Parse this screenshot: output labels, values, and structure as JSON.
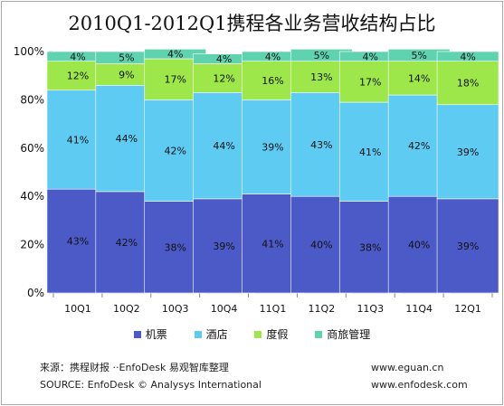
{
  "colors": {
    "airline": "#4c5ac8",
    "hotel": "#5ecbf3",
    "vacation": "#9de74a",
    "business": "#5fd3ae"
  },
  "footer": {
    "source_cn": "来源：携程财报 ··EnfoDesk 易观智库整理",
    "source_en": "SOURCE: EnfoDesk © Analysys International",
    "url1": "www.eguan.cn",
    "url2": "www.enfodesk.com"
  },
  "chart_data": {
    "type": "bar",
    "stacked": true,
    "title": "2010Q1-2012Q1携程各业务营收结构占比",
    "categories": [
      "10Q1",
      "10Q2",
      "10Q3",
      "10Q4",
      "11Q1",
      "11Q2",
      "11Q3",
      "11Q4",
      "12Q1"
    ],
    "ylim": [
      0,
      100
    ],
    "yticks": [
      "0%",
      "20%",
      "40%",
      "60%",
      "80%",
      "100%"
    ],
    "grid": false,
    "legend_position": "bottom",
    "series": [
      {
        "name": "机票",
        "color": "#4c5ac8",
        "values": [
          43,
          42,
          38,
          39,
          41,
          40,
          38,
          40,
          39
        ]
      },
      {
        "name": "酒店",
        "color": "#5ecbf3",
        "values": [
          41,
          44,
          42,
          44,
          39,
          43,
          41,
          42,
          39
        ]
      },
      {
        "name": "度假",
        "color": "#9de74a",
        "values": [
          12,
          9,
          17,
          12,
          16,
          13,
          17,
          14,
          18
        ]
      },
      {
        "name": "商旅管理",
        "color": "#5fd3ae",
        "values": [
          4,
          5,
          4,
          4,
          4,
          5,
          4,
          5,
          4
        ]
      }
    ]
  }
}
